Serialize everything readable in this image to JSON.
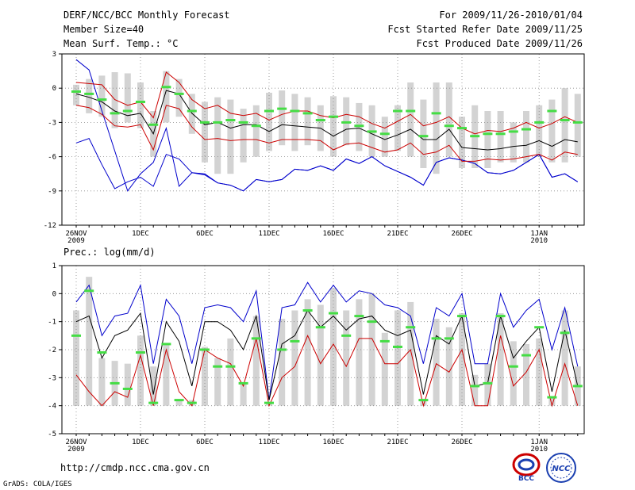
{
  "header": {
    "title": "DERF/NCC/BCC Monthly Forecast",
    "member_size": "Member Size=40",
    "panel1_label": "Mean Surf. Temp.: °C",
    "forecast_range": "For 2009/11/26-2010/01/04",
    "started_refer": "Fcst Started Refer Date 2009/11/25",
    "produced": "Fcst Produced Date 2009/11/26"
  },
  "footer": {
    "url": "http://cmdp.ncc.cma.gov.cn",
    "grads": "GrADS: COLA/IGES",
    "logo_left_text": "BCC",
    "logo_right_text": "NCC"
  },
  "colors": {
    "max_line": "#0000cc",
    "min_line": "#0000cc",
    "mean_line": "#000000",
    "std_line": "#cc0000",
    "bar": "#d3d3d3",
    "marker": "#44dd44",
    "grid": "#888888"
  },
  "chart_data": [
    {
      "type": "bar",
      "title": "Mean Surf. Temp.: °C",
      "x": [
        "26NOV",
        "27NOV",
        "28NOV",
        "29NOV",
        "30NOV",
        "1DEC",
        "2DEC",
        "3DEC",
        "4DEC",
        "5DEC",
        "6DEC",
        "7DEC",
        "8DEC",
        "9DEC",
        "10DEC",
        "11DEC",
        "12DEC",
        "13DEC",
        "14DEC",
        "15DEC",
        "16DEC",
        "17DEC",
        "18DEC",
        "19DEC",
        "20DEC",
        "21DEC",
        "22DEC",
        "23DEC",
        "24DEC",
        "25DEC",
        "26DEC",
        "27DEC",
        "28DEC",
        "29DEC",
        "30DEC",
        "31DEC",
        "1JAN",
        "2JAN",
        "3JAN",
        "4JAN"
      ],
      "x_tick_labels": [
        {
          "index": 0,
          "label": "26NOV",
          "sub": "2009"
        },
        {
          "index": 5,
          "label": "1DEC"
        },
        {
          "index": 10,
          "label": "6DEC"
        },
        {
          "index": 15,
          "label": "11DEC"
        },
        {
          "index": 20,
          "label": "16DEC"
        },
        {
          "index": 25,
          "label": "21DEC"
        },
        {
          "index": 30,
          "label": "26DEC"
        },
        {
          "index": 36,
          "label": "1JAN",
          "sub": "2010"
        }
      ],
      "ylim": [
        -12,
        3
      ],
      "yticks": [
        3,
        0,
        -3,
        -6,
        -9,
        -12
      ],
      "series": [
        {
          "name": "max",
          "values": [
            2.5,
            1.6,
            -2.0,
            -5.5,
            -9.0,
            -7.5,
            -6.5,
            -3.5,
            -8.6,
            -7.4,
            -7.5,
            -8.3,
            -8.5,
            -9.0,
            -8.0,
            -8.2,
            -8.0,
            -7.1,
            -7.2,
            -6.8,
            -7.2,
            -6.2,
            -6.6,
            -6.0,
            -6.8,
            -7.3,
            -7.8,
            -8.5,
            -6.5,
            -6.1,
            -6.3,
            -6.6,
            -7.4,
            -7.5,
            -7.2,
            -6.5,
            -5.8,
            -7.8,
            -7.5,
            -8.2
          ]
        },
        {
          "name": "upper_std",
          "values": [
            0.5,
            0.4,
            0.3,
            -1.0,
            -1.5,
            -1.2,
            -2.6,
            1.4,
            0.5,
            -1.0,
            -1.8,
            -1.5,
            -2.2,
            -2.4,
            -2.2,
            -2.8,
            -2.3,
            -2.0,
            -2.0,
            -2.4,
            -2.6,
            -2.3,
            -2.5,
            -3.1,
            -3.5,
            -2.9,
            -2.3,
            -3.3,
            -3.0,
            -2.5,
            -3.5,
            -4.0,
            -3.7,
            -3.8,
            -3.5,
            -3.0,
            -3.5,
            -3.1,
            -2.5,
            -3.0
          ]
        },
        {
          "name": "mean",
          "values": [
            -0.5,
            -0.8,
            -1.2,
            -2.0,
            -2.4,
            -2.2,
            -4.0,
            -0.2,
            -0.5,
            -2.2,
            -3.2,
            -3.0,
            -3.5,
            -3.2,
            -3.2,
            -3.8,
            -3.2,
            -3.3,
            -3.4,
            -3.5,
            -4.2,
            -3.6,
            -3.5,
            -4.0,
            -4.5,
            -4.1,
            -3.6,
            -4.5,
            -4.5,
            -3.6,
            -5.2,
            -5.3,
            -5.4,
            -5.3,
            -5.1,
            -5.0,
            -4.6,
            -5.1,
            -4.5,
            -4.7
          ]
        },
        {
          "name": "lower_std",
          "values": [
            -1.5,
            -1.7,
            -2.3,
            -3.3,
            -3.4,
            -3.2,
            -5.4,
            -1.5,
            -1.8,
            -3.4,
            -4.5,
            -4.4,
            -4.6,
            -4.5,
            -4.5,
            -4.8,
            -4.5,
            -4.5,
            -4.5,
            -4.6,
            -5.4,
            -4.9,
            -4.8,
            -5.2,
            -5.6,
            -5.4,
            -4.8,
            -5.8,
            -5.6,
            -5.0,
            -6.4,
            -6.4,
            -6.2,
            -6.3,
            -6.2,
            -6.0,
            -5.8,
            -6.3,
            -5.6,
            -5.8
          ]
        },
        {
          "name": "min",
          "values": [
            -4.8,
            -4.4,
            -6.7,
            -8.8,
            -8.2,
            -7.8,
            -8.6,
            -5.8,
            -6.2,
            -7.4,
            -7.6,
            -8.3,
            -8.5,
            -9.0,
            -8.0,
            -8.2,
            -8.0,
            -7.1,
            -7.2,
            -6.8,
            -7.2,
            -6.2,
            -6.6,
            -6.0,
            -6.8,
            -7.3,
            -7.8,
            -8.5,
            -6.5,
            -6.1,
            -6.3,
            -6.6,
            -7.4,
            -7.5,
            -7.2,
            -6.5,
            -5.8,
            -7.8,
            -7.5,
            -8.2
          ]
        },
        {
          "name": "bar_top",
          "values": [
            0.3,
            0.8,
            1.1,
            1.4,
            1.3,
            0.5,
            -2.0,
            1.5,
            0.8,
            -0.5,
            -1.2,
            -0.8,
            -1.0,
            -1.8,
            -1.5,
            -0.4,
            -0.2,
            -0.5,
            -0.8,
            -1.5,
            -0.7,
            -0.8,
            -1.3,
            -1.5,
            -2.5,
            -1.5,
            0.5,
            -1.0,
            0.5,
            0.5,
            -2.5,
            -1.5,
            -2.0,
            -2.0,
            -3.0,
            -2.0,
            -1.5,
            -1.0,
            0.0,
            -0.5
          ]
        },
        {
          "name": "bar_bottom",
          "values": [
            -1.5,
            -2.2,
            -2.5,
            -3.5,
            -3.0,
            -3.5,
            -6.0,
            -3.0,
            -2.5,
            -4.0,
            -6.5,
            -7.5,
            -7.5,
            -6.5,
            -6.0,
            -5.5,
            -5.0,
            -5.5,
            -5.0,
            -5.5,
            -6.0,
            -5.0,
            -5.5,
            -6.0,
            -6.0,
            -5.5,
            -6.0,
            -7.0,
            -7.5,
            -6.0,
            -7.0,
            -7.0,
            -7.0,
            -6.5,
            -6.5,
            -6.5,
            -6.0,
            -6.5,
            -6.5,
            -6.0
          ]
        },
        {
          "name": "marker",
          "values": [
            -0.3,
            -0.5,
            -1.0,
            -2.2,
            -2.0,
            -1.2,
            -3.2,
            0.1,
            -0.5,
            -2.0,
            -3.0,
            -3.0,
            -2.8,
            -3.0,
            -3.3,
            -2.0,
            -1.8,
            -2.0,
            -2.2,
            -2.8,
            -2.5,
            -3.0,
            -3.3,
            -3.8,
            -4.0,
            -2.0,
            -2.0,
            -4.2,
            -2.2,
            -3.3,
            -3.5,
            -4.2,
            -4.0,
            -4.0,
            -3.8,
            -3.6,
            -3.0,
            -2.0,
            -2.8,
            -3.0
          ]
        }
      ]
    },
    {
      "type": "bar",
      "title": "Prec.: log(mm/d)",
      "x": [
        "26NOV",
        "27NOV",
        "28NOV",
        "29NOV",
        "30NOV",
        "1DEC",
        "2DEC",
        "3DEC",
        "4DEC",
        "5DEC",
        "6DEC",
        "7DEC",
        "8DEC",
        "9DEC",
        "10DEC",
        "11DEC",
        "12DEC",
        "13DEC",
        "14DEC",
        "15DEC",
        "16DEC",
        "17DEC",
        "18DEC",
        "19DEC",
        "20DEC",
        "21DEC",
        "22DEC",
        "23DEC",
        "24DEC",
        "25DEC",
        "26DEC",
        "27DEC",
        "28DEC",
        "29DEC",
        "30DEC",
        "31DEC",
        "1JAN",
        "2JAN",
        "3JAN",
        "4JAN"
      ],
      "x_tick_labels": [
        {
          "index": 0,
          "label": "26NOV",
          "sub": "2009"
        },
        {
          "index": 5,
          "label": "1DEC"
        },
        {
          "index": 10,
          "label": "6DEC"
        },
        {
          "index": 15,
          "label": "11DEC"
        },
        {
          "index": 20,
          "label": "16DEC"
        },
        {
          "index": 25,
          "label": "21DEC"
        },
        {
          "index": 30,
          "label": "26DEC"
        },
        {
          "index": 36,
          "label": "1JAN",
          "sub": "2010"
        }
      ],
      "ylim": [
        -5,
        1
      ],
      "yticks": [
        1,
        0,
        -1,
        -2,
        -3,
        -4,
        -5
      ],
      "series": [
        {
          "name": "max",
          "values": [
            -0.3,
            0.3,
            -1.5,
            -0.8,
            -0.7,
            0.3,
            -2.5,
            -0.2,
            -0.8,
            -2.5,
            -0.5,
            -0.4,
            -0.5,
            -1.0,
            0.1,
            -3.8,
            -0.5,
            -0.4,
            0.4,
            -0.3,
            0.3,
            -0.3,
            0.1,
            0.0,
            -0.4,
            -0.5,
            -0.8,
            -2.5,
            -0.5,
            -0.8,
            0.0,
            -2.5,
            -2.5,
            0.0,
            -1.2,
            -0.6,
            -0.2,
            -2.0,
            -0.5,
            -2.6
          ]
        },
        {
          "name": "mean",
          "values": [
            -1.0,
            -0.8,
            -2.3,
            -1.5,
            -1.3,
            -0.7,
            -3.6,
            -1.0,
            -1.7,
            -3.3,
            -1.0,
            -1.0,
            -1.3,
            -2.0,
            -0.8,
            -3.8,
            -1.8,
            -1.5,
            -0.6,
            -1.2,
            -0.8,
            -1.3,
            -0.9,
            -0.8,
            -1.3,
            -1.5,
            -1.3,
            -3.6,
            -1.5,
            -1.8,
            -0.8,
            -3.3,
            -3.2,
            -0.8,
            -2.3,
            -1.7,
            -1.2,
            -3.5,
            -1.3,
            -3.3
          ]
        },
        {
          "name": "lower_std",
          "values": [
            -2.9,
            -3.5,
            -4.0,
            -3.5,
            -3.7,
            -2.2,
            -4.0,
            -2.0,
            -3.5,
            -4.0,
            -2.0,
            -2.3,
            -2.5,
            -3.3,
            -1.6,
            -4.0,
            -3.0,
            -2.6,
            -1.5,
            -2.5,
            -1.8,
            -2.6,
            -1.6,
            -1.6,
            -2.5,
            -2.5,
            -2.0,
            -4.0,
            -2.5,
            -2.8,
            -2.0,
            -4.0,
            -4.0,
            -1.5,
            -3.3,
            -2.8,
            -2.0,
            -4.0,
            -2.5,
            -4.0
          ]
        },
        {
          "name": "bar_top",
          "values": [
            -0.6,
            0.6,
            -2.3,
            -2.4,
            -2.5,
            -1.5,
            -2.6,
            -1.8,
            -3.8,
            -3.8,
            -1.9,
            -2.3,
            -1.6,
            -3.2,
            -0.8,
            -3.9,
            -0.9,
            -0.6,
            -0.2,
            -0.4,
            0.2,
            -0.6,
            -0.2,
            0.0,
            -1.4,
            -0.6,
            -0.3,
            -3.8,
            -0.9,
            -1.2,
            -0.7,
            -2.9,
            -2.5,
            -0.7,
            -1.7,
            -1.8,
            -1.6,
            -3.7,
            -0.6,
            -2.6
          ]
        },
        {
          "name": "bar_bottom",
          "values": [
            -4.0,
            -4.0,
            -4.0,
            -4.0,
            -4.0,
            -4.0,
            -4.0,
            -4.0,
            -4.0,
            -4.0,
            -4.0,
            -4.0,
            -4.0,
            -4.0,
            -4.0,
            -4.0,
            -4.0,
            -4.0,
            -4.0,
            -4.0,
            -4.0,
            -4.0,
            -4.0,
            -4.0,
            -4.0,
            -4.0,
            -4.0,
            -4.0,
            -4.0,
            -4.0,
            -4.0,
            -4.0,
            -4.0,
            -4.0,
            -4.0,
            -4.0,
            -4.0,
            -4.0,
            -4.0,
            -4.0
          ]
        },
        {
          "name": "marker",
          "values": [
            -1.5,
            0.1,
            -2.1,
            -3.2,
            -3.4,
            -2.1,
            -3.9,
            -1.8,
            -3.8,
            -3.9,
            -2.0,
            -2.6,
            -2.6,
            -3.2,
            -1.6,
            -3.9,
            -2.0,
            -1.7,
            -0.6,
            -1.2,
            -0.7,
            -1.5,
            -0.8,
            -1.0,
            -1.7,
            -1.9,
            -1.2,
            -3.8,
            -1.6,
            -1.6,
            -0.8,
            -3.3,
            -3.2,
            -0.8,
            -2.6,
            -2.2,
            -1.2,
            -3.7,
            -1.4,
            -3.3
          ]
        }
      ]
    }
  ]
}
